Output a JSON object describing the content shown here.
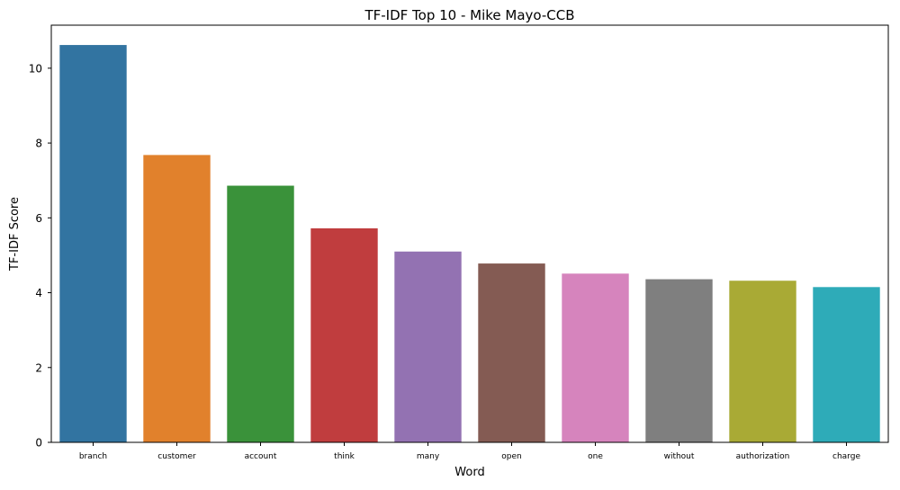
{
  "chart_data": {
    "type": "bar",
    "title": "TF-IDF Top 10 - Mike Mayo-CCB",
    "xlabel": "Word",
    "ylabel": "TF-IDF Score",
    "categories": [
      "branch",
      "customer",
      "account",
      "think",
      "many",
      "open",
      "one",
      "without",
      "authorization",
      "charge"
    ],
    "values": [
      10.62,
      7.68,
      6.86,
      5.72,
      5.1,
      4.78,
      4.51,
      4.36,
      4.32,
      4.15
    ],
    "colors": [
      "#3274a1",
      "#e1812c",
      "#3a923a",
      "#c03d3e",
      "#9372b2",
      "#845b53",
      "#d684bd",
      "#7f7f7f",
      "#a9aa35",
      "#2eabb8"
    ],
    "ylim": [
      0,
      11.15
    ],
    "yticks": [
      "0",
      "2",
      "4",
      "6",
      "8",
      "10"
    ],
    "grid": false,
    "legend": "none"
  }
}
